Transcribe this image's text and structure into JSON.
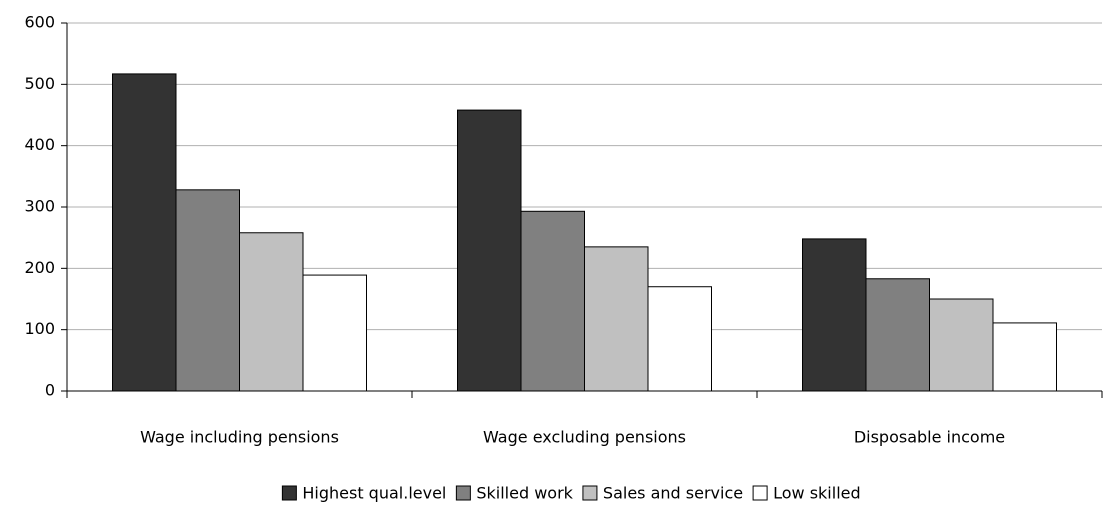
{
  "chart_data": {
    "type": "bar",
    "categories": [
      "Wage including pensions",
      "Wage excluding pensions",
      "Disposable income"
    ],
    "series": [
      {
        "name": "Highest qual.level",
        "color": "#333333",
        "values": [
          517,
          458,
          248
        ]
      },
      {
        "name": "Skilled work",
        "color": "#808080",
        "values": [
          328,
          293,
          183
        ]
      },
      {
        "name": "Sales and service",
        "color": "#c0c0c0",
        "values": [
          258,
          235,
          150
        ]
      },
      {
        "name": "Low skilled",
        "color": "#ffffff",
        "values": [
          189,
          170,
          111
        ]
      }
    ],
    "ylim": [
      0,
      600
    ],
    "yticks": [
      0,
      100,
      200,
      300,
      400,
      500,
      600
    ],
    "grid": true,
    "legend": "bottom"
  }
}
